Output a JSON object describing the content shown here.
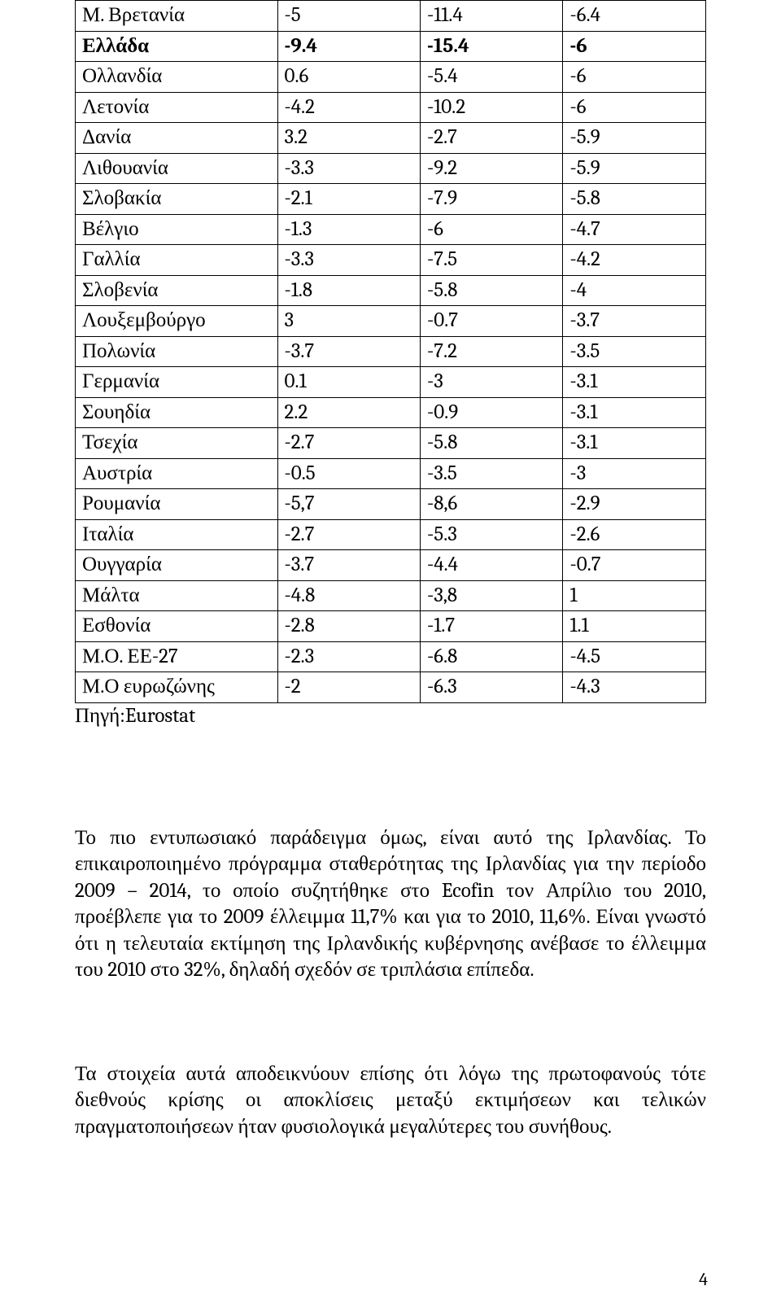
{
  "table": {
    "border_color": "#000000",
    "font_size_pt": 19,
    "rows": [
      {
        "bold": false,
        "cells": [
          "Μ. Βρετανία",
          "-5",
          "-11.4",
          "-6.4"
        ]
      },
      {
        "bold": true,
        "cells": [
          "Ελλάδα",
          "-9.4",
          "-15.4",
          "-6"
        ]
      },
      {
        "bold": false,
        "cells": [
          "Ολλανδία",
          "0.6",
          "-5.4",
          "-6"
        ]
      },
      {
        "bold": false,
        "cells": [
          "Λετονία",
          "-4.2",
          "-10.2",
          "-6"
        ]
      },
      {
        "bold": false,
        "cells": [
          "Δανία",
          "3.2",
          "-2.7",
          "-5.9"
        ]
      },
      {
        "bold": false,
        "cells": [
          "Λιθουανία",
          "-3.3",
          "-9.2",
          "-5.9"
        ]
      },
      {
        "bold": false,
        "cells": [
          "Σλοβακία",
          "-2.1",
          "-7.9",
          "-5.8"
        ]
      },
      {
        "bold": false,
        "cells": [
          "Βέλγιο",
          "-1.3",
          "-6",
          "-4.7"
        ]
      },
      {
        "bold": false,
        "cells": [
          "Γαλλία",
          "-3.3",
          "-7.5",
          "-4.2"
        ]
      },
      {
        "bold": false,
        "cells": [
          "Σλοβενία",
          "-1.8",
          "-5.8",
          "-4"
        ]
      },
      {
        "bold": false,
        "cells": [
          "Λουξεμβούργο",
          "3",
          "-0.7",
          "-3.7"
        ]
      },
      {
        "bold": false,
        "cells": [
          "Πολωνία",
          "-3.7",
          "-7.2",
          "-3.5"
        ]
      },
      {
        "bold": false,
        "cells": [
          "Γερμανία",
          "0.1",
          "-3",
          "-3.1"
        ]
      },
      {
        "bold": false,
        "cells": [
          "Σουηδία",
          "2.2",
          "-0.9",
          "-3.1"
        ]
      },
      {
        "bold": false,
        "cells": [
          "Τσεχία",
          "-2.7",
          "-5.8",
          "-3.1"
        ]
      },
      {
        "bold": false,
        "cells": [
          "Αυστρία",
          "-0.5",
          "-3.5",
          "-3"
        ]
      },
      {
        "bold": false,
        "cells": [
          "Ρουμανία",
          "-5,7",
          "-8,6",
          "-2.9"
        ]
      },
      {
        "bold": false,
        "cells": [
          "Ιταλία",
          "-2.7",
          "-5.3",
          "-2.6"
        ]
      },
      {
        "bold": false,
        "cells": [
          "Ουγγαρία",
          "-3.7",
          "-4.4",
          "-0.7"
        ]
      },
      {
        "bold": false,
        "cells": [
          "Μάλτα",
          "-4.8",
          "-3,8",
          "1"
        ]
      },
      {
        "bold": false,
        "cells": [
          "Εσθονία",
          "-2.8",
          "-1.7",
          "1.1"
        ]
      },
      {
        "bold": false,
        "cells": [
          "Μ.Ο. ΕΕ-27",
          "-2.3",
          "-6.8",
          "-4.5"
        ]
      },
      {
        "bold": false,
        "cells": [
          "Μ.Ο ευρωζώνης",
          "-2",
          "-6.3",
          "-4.3"
        ]
      }
    ]
  },
  "source_line": "Πηγή:Eurostat",
  "paragraph1": "Το πιο εντυπωσιακό παράδειγμα όμως, είναι αυτό της Ιρλανδίας. Το επικαιροποιημένο πρόγραμμα σταθερότητας της Ιρλανδίας για την περίοδο 2009 – 2014, το οποίο συζητήθηκε στο Ecofin τον Απρίλιο του 2010, προέβλεπε για το 2009 έλλειμμα 11,7% και για το 2010, 11,6%. Είναι γνωστό ότι η τελευταία εκτίμηση της Ιρλανδικής κυβέρνησης ανέβασε το έλλειμμα του 2010 στο 32%, δηλαδή σχεδόν σε τριπλάσια επίπεδα.",
  "paragraph2": "Τα στοιχεία αυτά αποδεικνύουν  επίσης ότι λόγω της πρωτοφανούς τότε διεθνούς κρίσης οι αποκλίσεις μεταξύ εκτιμήσεων και τελικών πραγματοποιήσεων ήταν φυσιολογικά μεγαλύτερες του συνήθους.",
  "page_number": "4",
  "colors": {
    "background": "#ffffff",
    "text": "#000000",
    "border": "#000000"
  }
}
